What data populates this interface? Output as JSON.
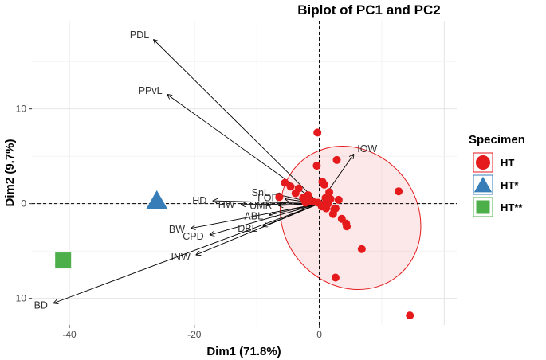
{
  "chart_data": {
    "type": "biplot",
    "title": "Biplot of PC1 and PC2",
    "xlabel": "Dim1 (71.8%)",
    "ylabel": "Dim2 (9.7%)",
    "xlim": [
      -46,
      22
    ],
    "ylim": [
      -12.8,
      19.3
    ],
    "xticks": [
      -40,
      -20,
      0
    ],
    "yticks": [
      -10,
      0,
      10
    ],
    "grid": true,
    "legend": {
      "title": "Specimen",
      "position": "right",
      "entries": [
        {
          "label": "HT",
          "color": "#E41A1C",
          "shape": "circle"
        },
        {
          "label": "HT*",
          "color": "#377EB8",
          "shape": "triangle"
        },
        {
          "label": "HT**",
          "color": "#4DAF4A",
          "shape": "square"
        }
      ]
    },
    "groups": [
      {
        "name": "HT",
        "color": "#E41A1C",
        "shape": "circle",
        "points": [
          [
            -0.3,
            7.5
          ],
          [
            2.8,
            4.6
          ],
          [
            12.7,
            1.3
          ],
          [
            14.5,
            -11.8
          ],
          [
            6.8,
            -4.8
          ],
          [
            4.3,
            -2.1
          ],
          [
            4.4,
            -2.4
          ],
          [
            2.6,
            -7.8
          ],
          [
            2.4,
            -0.6
          ],
          [
            3.6,
            -1.6
          ],
          [
            1.6,
            1.2
          ],
          [
            1.0,
            0.6
          ],
          [
            1.8,
            0.5
          ],
          [
            0.5,
            2.3
          ],
          [
            0.8,
            2.0
          ],
          [
            -0.2,
            0.1
          ],
          [
            -0.4,
            4.0
          ],
          [
            -1.0,
            0.2
          ],
          [
            0.4,
            -0.3
          ],
          [
            1.4,
            0.0
          ],
          [
            2.2,
            -1.1
          ],
          [
            3.1,
            0.4
          ],
          [
            2.6,
            -0.5
          ],
          [
            -2.6,
            0.6
          ],
          [
            -3.3,
            1.6
          ],
          [
            -4.6,
            1.8
          ],
          [
            -5.5,
            2.2
          ],
          [
            -3.8,
            1.1
          ],
          [
            -1.8,
            0.9
          ],
          [
            -1.4,
            0.3
          ],
          [
            -2.2,
            0.1
          ],
          [
            -6.4,
            0.7
          ],
          [
            0.6,
            -0.1
          ],
          [
            1.1,
            -0.5
          ]
        ]
      },
      {
        "name": "HT*",
        "color": "#377EB8",
        "shape": "triangle",
        "points": [
          [
            -26,
            0.3
          ]
        ]
      },
      {
        "name": "HT**",
        "color": "#4DAF4A",
        "shape": "square",
        "points": [
          [
            -41,
            -6.0
          ]
        ]
      }
    ],
    "ellipse": {
      "group": "HT",
      "cx": 5.0,
      "cy": -1.5,
      "rx_data": 10.7,
      "ry_data": 7.9,
      "rotation_deg": -40,
      "color": "#E41A1C"
    },
    "arrows": [
      {
        "label": "PDL",
        "x": -26.5,
        "y": 17.3
      },
      {
        "label": "PPvL",
        "x": -24.3,
        "y": 11.5
      },
      {
        "label": "HD",
        "x": -17.0,
        "y": 0.3
      },
      {
        "label": "SnL",
        "x": -7.0,
        "y": 1.0
      },
      {
        "label": "HW",
        "x": -12.5,
        "y": -0.1
      },
      {
        "label": "FOR",
        "x": -5.5,
        "y": 0.5
      },
      {
        "label": "UMR",
        "x": -6.5,
        "y": -0.2
      },
      {
        "label": "BW",
        "x": -20.5,
        "y": -2.6
      },
      {
        "label": "CPD",
        "x": -17.5,
        "y": -3.3
      },
      {
        "label": "ABL",
        "x": -8.0,
        "y": -1.2
      },
      {
        "label": "DBL",
        "x": -9.0,
        "y": -2.4
      },
      {
        "label": "INW",
        "x": -19.7,
        "y": -5.4
      },
      {
        "label": "BD",
        "x": -42.5,
        "y": -10.5
      },
      {
        "label": "IOW",
        "x": 5.5,
        "y": 5.2
      }
    ]
  }
}
